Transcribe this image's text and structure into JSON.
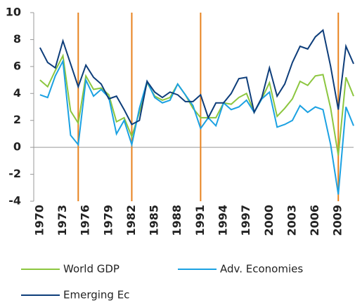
{
  "chart_data": {
    "type": "line",
    "x": [
      1970,
      1971,
      1972,
      1973,
      1974,
      1975,
      1976,
      1977,
      1978,
      1979,
      1980,
      1981,
      1982,
      1983,
      1984,
      1985,
      1986,
      1987,
      1988,
      1989,
      1990,
      1991,
      1992,
      1993,
      1994,
      1995,
      1996,
      1997,
      1998,
      1999,
      2000,
      2001,
      2002,
      2003,
      2004,
      2005,
      2006,
      2007,
      2008,
      2009,
      2010,
      2011
    ],
    "series": [
      {
        "name": "World GDP",
        "color": "#8cc63f",
        "values": [
          5.0,
          4.5,
          5.7,
          6.8,
          2.7,
          1.8,
          5.3,
          4.3,
          4.4,
          3.9,
          1.9,
          2.2,
          0.8,
          2.6,
          4.8,
          3.8,
          3.5,
          3.7,
          4.7,
          3.9,
          2.9,
          2.2,
          2.2,
          2.2,
          3.3,
          3.2,
          3.7,
          4.0,
          2.6,
          3.6,
          4.8,
          2.3,
          2.9,
          3.6,
          4.9,
          4.6,
          5.3,
          5.4,
          2.9,
          -0.6,
          5.2,
          3.8
        ]
      },
      {
        "name": "Adv. Economies",
        "color": "#1ba1e2",
        "values": [
          3.9,
          3.7,
          5.3,
          6.4,
          0.9,
          0.2,
          5.0,
          3.8,
          4.3,
          3.7,
          1.0,
          2.0,
          0.2,
          2.9,
          4.9,
          3.7,
          3.3,
          3.5,
          4.7,
          3.9,
          3.1,
          1.4,
          2.2,
          1.6,
          3.3,
          2.8,
          3.0,
          3.5,
          2.6,
          3.6,
          4.1,
          1.5,
          1.7,
          2.0,
          3.1,
          2.6,
          3.0,
          2.8,
          0.2,
          -3.5,
          3.0,
          1.6
        ]
      },
      {
        "name": "Emerging Ec",
        "color": "#0d3d7a",
        "values": [
          7.4,
          6.3,
          5.9,
          7.9,
          6.2,
          4.5,
          6.1,
          5.2,
          4.7,
          3.6,
          3.8,
          2.8,
          1.7,
          2.0,
          4.9,
          4.1,
          3.7,
          4.1,
          3.9,
          3.4,
          3.4,
          3.9,
          2.2,
          3.3,
          3.3,
          4.0,
          5.1,
          5.2,
          2.6,
          3.7,
          5.9,
          3.8,
          4.7,
          6.3,
          7.5,
          7.3,
          8.2,
          8.7,
          6.0,
          2.8,
          7.5,
          6.2
        ]
      }
    ],
    "recession_lines": [
      1975,
      1982,
      1991,
      2009
    ],
    "recession_color": "#e8821e",
    "xlim": [
      1969,
      2011
    ],
    "xticks": [
      1970,
      1973,
      1976,
      1979,
      1982,
      1985,
      1988,
      1991,
      1994,
      1997,
      2000,
      2003,
      2006,
      2009
    ],
    "ylim": [
      -4,
      10
    ],
    "yticks": [
      10,
      8,
      6,
      4,
      2,
      0,
      -2,
      -4
    ],
    "grid": false
  }
}
